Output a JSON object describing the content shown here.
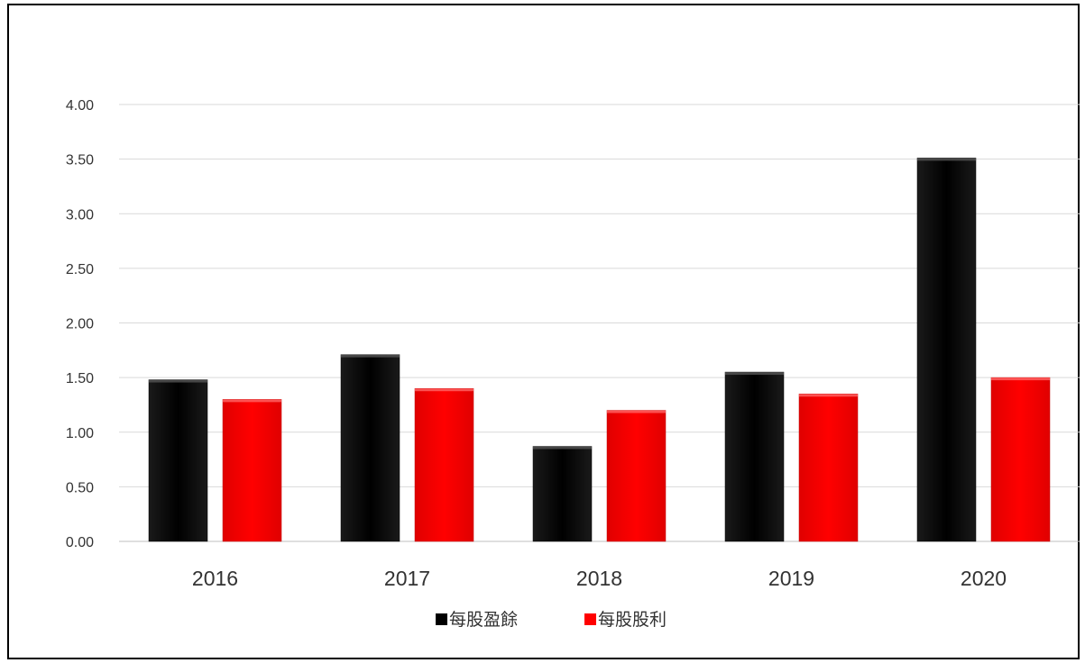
{
  "chart_data": {
    "type": "bar",
    "title": "",
    "xlabel": "",
    "ylabel": "",
    "categories": [
      "2016",
      "2017",
      "2018",
      "2019",
      "2020"
    ],
    "series": [
      {
        "name": "每股盈餘",
        "color": "#000000",
        "values": [
          1.48,
          1.71,
          0.87,
          1.55,
          3.51
        ]
      },
      {
        "name": "每股股利",
        "color": "#ff0000",
        "values": [
          1.3,
          1.4,
          1.2,
          1.35,
          1.5
        ]
      }
    ],
    "ylim": [
      0,
      4
    ],
    "yticks": [
      "0.00",
      "0.50",
      "1.00",
      "1.50",
      "2.00",
      "2.50",
      "3.00",
      "3.50",
      "4.00"
    ],
    "grid": true,
    "legend_position": "bottom"
  }
}
